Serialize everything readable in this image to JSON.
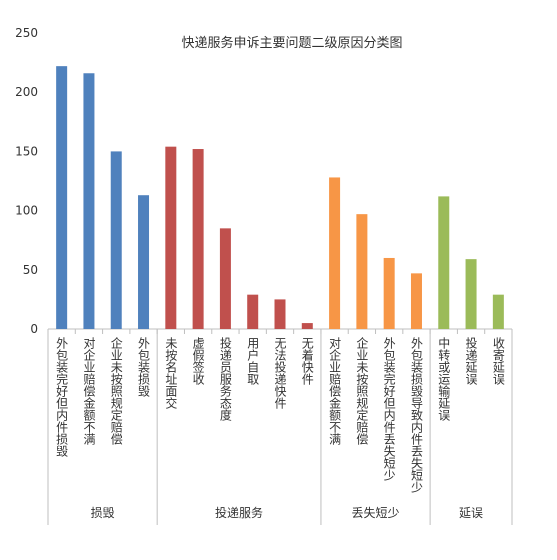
{
  "chart_data": {
    "type": "bar",
    "title": "快递服务申诉主要问题二级原因分类图",
    "groups": [
      {
        "name": "损毁",
        "color": "#4f81bd",
        "categories": [
          "外包装完好但内件损毁",
          "对企业赔偿金额不满",
          "企业未按照规定赔偿",
          "外包装损毁"
        ],
        "values": [
          222,
          216,
          150,
          113
        ]
      },
      {
        "name": "投递服务",
        "color": "#c0504d",
        "categories": [
          "未按名址面交",
          "虚假签收",
          "投递员服务态度",
          "用户自取",
          "无法投递快件",
          "无着快件"
        ],
        "values": [
          154,
          152,
          85,
          29,
          25,
          5
        ]
      },
      {
        "name": "丢失短少",
        "color": "#f79646",
        "categories": [
          "对企业赔偿金额不满",
          "企业未按照规定赔偿",
          "外包装完好但内件丢失短少",
          "外包装损毁导致内件丢失短少"
        ],
        "values": [
          128,
          97,
          60,
          47
        ]
      },
      {
        "name": "延误",
        "color": "#9bbb59",
        "categories": [
          "中转或运输延误",
          "投递延误",
          "收寄延误"
        ],
        "values": [
          112,
          59,
          29
        ]
      }
    ],
    "ylim": [
      0,
      250
    ],
    "yticks": [
      0,
      50,
      100,
      150,
      200,
      250
    ]
  }
}
